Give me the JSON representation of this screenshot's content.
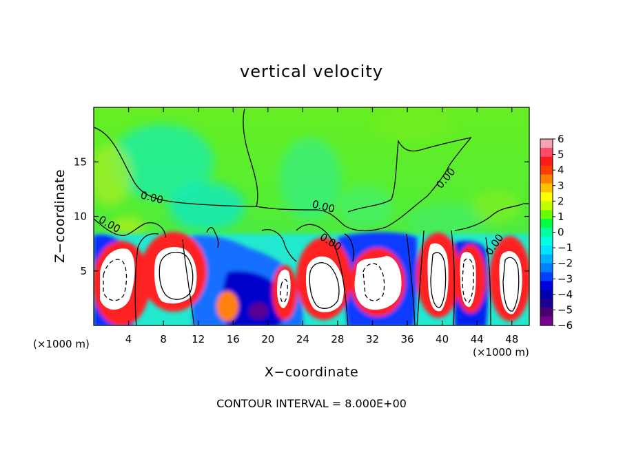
{
  "chart_data": {
    "type": "heatmap",
    "title": "vertical velocity",
    "xlabel": "X−coordinate",
    "ylabel": "Z−coordinate",
    "x_unit_label": "(×1000 m)",
    "z_unit_label": "(×1000 m)",
    "xlim": [
      0,
      50
    ],
    "ylim": [
      0,
      20
    ],
    "x_ticks": [
      4,
      8,
      12,
      16,
      20,
      24,
      28,
      32,
      36,
      40,
      44,
      48
    ],
    "y_ticks": [
      5,
      10,
      15
    ],
    "colorbar": {
      "ticks": [
        "6",
        "5",
        "4",
        "3",
        "2",
        "1",
        "0",
        "−1",
        "−2",
        "−3",
        "−4",
        "−5",
        "−6"
      ],
      "colors": [
        "#f5a3b4",
        "#ff4a6a",
        "#ff1a1a",
        "#ff3d00",
        "#ff8000",
        "#ffc000",
        "#ffff00",
        "#c0ff00",
        "#66ff00",
        "#00ff40",
        "#00ffa0",
        "#00ffe0",
        "#00e0ff",
        "#00b0ff",
        "#0080ff",
        "#0040ff",
        "#0000e0",
        "#0000b0",
        "#200090",
        "#4a0070",
        "#7a0090"
      ]
    },
    "contour_label": "0.00",
    "annotation": "CONTOUR INTERVAL = 8.000E+00",
    "updrafts": [
      {
        "x": 2.5,
        "z": 4.5
      },
      {
        "x": 9.3,
        "z": 5.4
      },
      {
        "x": 22.5,
        "z": 3.5
      },
      {
        "x": 26.0,
        "z": 4.2
      },
      {
        "x": 33.5,
        "z": 4.2
      },
      {
        "x": 39.7,
        "z": 5.0
      },
      {
        "x": 43.6,
        "z": 4.5
      },
      {
        "x": 48.0,
        "z": 4.5
      }
    ],
    "downdrafts": [
      {
        "x": 2.0,
        "z": 5.2
      },
      {
        "x": 12.5,
        "z": 4.5
      },
      {
        "x": 19.0,
        "z": 3.5
      },
      {
        "x": 31.5,
        "z": 5.0
      },
      {
        "x": 35.8,
        "z": 5.0
      },
      {
        "x": 42.0,
        "z": 4.0
      },
      {
        "x": 45.8,
        "z": 4.0
      }
    ]
  }
}
